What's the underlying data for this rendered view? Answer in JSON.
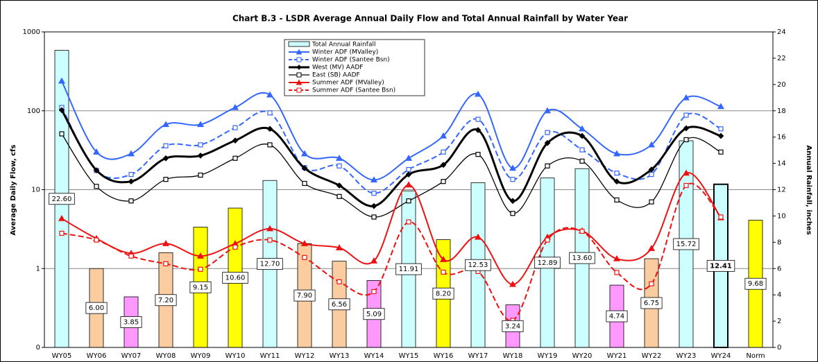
{
  "chart_data": {
    "type": "combo",
    "title": "Chart B.3 - LSDR Average Annual Daily Flow and Total Annual Rainfall by Water Year",
    "y_label": "Average Daily Flow, cfs",
    "y2_label": "Annual Rainfall, inches",
    "categories": [
      "WY05",
      "WY06",
      "WY07",
      "WY08",
      "WY09",
      "WY10",
      "WY11",
      "WY12",
      "WY13",
      "WY14",
      "WY15",
      "WY16",
      "WY17",
      "WY18",
      "WY19",
      "WY20",
      "WY21",
      "WY22",
      "WY23",
      "WY24",
      "Norm"
    ],
    "log_scale": true,
    "ylim": [
      0.1,
      1000
    ],
    "yticks": [
      {
        "value": 0.1,
        "label": "0"
      },
      1,
      10,
      100,
      1000
    ],
    "y2lim": [
      0,
      24
    ],
    "y2ticks": [
      0,
      2,
      4,
      6,
      8,
      10,
      12,
      14,
      16,
      18,
      20,
      22,
      24
    ],
    "grid": true,
    "legend": "top",
    "bars": {
      "name": "Total Annual Rainfall",
      "axis": "y2",
      "color": "#ccffff",
      "values": [
        22.6,
        6,
        3.85,
        7.2,
        9.15,
        10.6,
        12.7,
        7.9,
        6.56,
        5.09,
        11.91,
        8.2,
        12.53,
        3.24,
        12.89,
        13.6,
        4.74,
        6.75,
        15.72,
        12.41,
        9.68
      ],
      "value_labels": [
        "22.60",
        "6.00",
        "3.85",
        "7.20",
        "9.15",
        "10.60",
        "12.70",
        "7.90",
        "6.56",
        "5.09",
        "11.91",
        "8.20",
        "12.53",
        "3.24",
        "12.89",
        "13.60",
        "4.74",
        "6.75",
        "15.72",
        "12.41",
        "9.68"
      ],
      "colors": [
        "#ccffff",
        "#fbcca0",
        "#ff99ff",
        "#fbcca0",
        "#ffff00",
        "#ffff00",
        "#ccffff",
        "#fbcca0",
        "#fbcca0",
        "#ff99ff",
        "#ccffff",
        "#ffff00",
        "#ccffff",
        "#ff99ff",
        "#ccffff",
        "#ccffff",
        "#ff99ff",
        "#fbcca0",
        "#ccffff",
        "#ccffff",
        "#ffff00"
      ],
      "highlight": 19
    },
    "series": [
      {
        "name": "Winter ADF (MValley)",
        "color": "#3366ff",
        "marker": "triangle",
        "dashed": false,
        "width": 2,
        "values": [
          238,
          30,
          28.5,
          67,
          67,
          110,
          159,
          28.5,
          25,
          13.3,
          25,
          48,
          162,
          18.7,
          100,
          59,
          28.5,
          37,
          146,
          113,
          null
        ]
      },
      {
        "name": "Winter ADF (Santee Bsn)",
        "color": "#3366ff",
        "marker": "square",
        "dashed": true,
        "width": 2,
        "values": [
          110,
          17.5,
          15.6,
          36,
          37,
          61,
          94,
          19,
          20,
          9,
          18,
          30,
          78,
          13.5,
          53,
          32,
          16.2,
          15.6,
          88,
          59,
          null
        ]
      },
      {
        "name": "West (MV) AADF",
        "color": "#000000",
        "marker": "diamond",
        "dashed": false,
        "width": 3,
        "values": [
          102,
          17.6,
          12.7,
          25,
          27,
          42,
          59,
          18.7,
          11.3,
          6.2,
          15.6,
          20.6,
          57,
          7.2,
          39,
          48,
          12.7,
          18,
          60,
          48,
          null
        ]
      },
      {
        "name": "East (SB) AADF",
        "color": "#000000",
        "marker": "square",
        "dashed": false,
        "width": 1.3,
        "values": [
          51,
          11,
          7.2,
          13.5,
          15.3,
          25,
          37,
          12,
          8.2,
          4.5,
          7.2,
          12.7,
          28,
          5,
          20,
          23,
          7.4,
          7,
          43,
          30,
          null
        ]
      },
      {
        "name": "Summer ADF (MValley)",
        "color": "#ee1111",
        "marker": "triangle",
        "dashed": false,
        "width": 2,
        "values": [
          4.3,
          2.4,
          1.56,
          2.07,
          1.44,
          2.07,
          3.2,
          2.07,
          1.83,
          1.25,
          11.5,
          1.3,
          2.5,
          0.63,
          2.5,
          3,
          1.33,
          1.8,
          16.2,
          4.4,
          null
        ]
      },
      {
        "name": "Summer ADF (Santee Bsn)",
        "color": "#ee1111",
        "marker": "square",
        "dashed": true,
        "width": 2,
        "values": [
          2.8,
          2.3,
          1.44,
          1.15,
          0.98,
          1.87,
          2.3,
          1.38,
          0.68,
          0.51,
          3.9,
          0.9,
          0.92,
          0.22,
          2.3,
          2.97,
          0.89,
          0.64,
          11.3,
          4.5,
          null
        ]
      }
    ]
  }
}
